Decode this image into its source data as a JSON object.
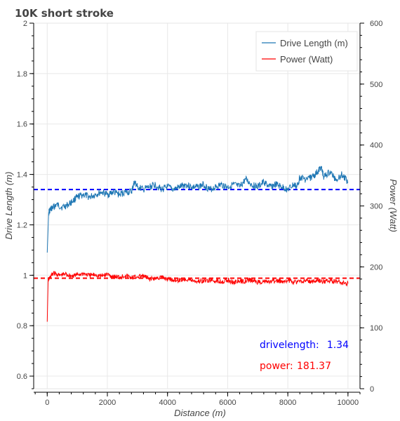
{
  "chart_data": {
    "type": "line",
    "title": "10K short stroke",
    "xlabel": "Distance (m)",
    "ylabel": "Drive Length (m)",
    "y2label": "Power (Watt)",
    "xlim": [
      -450,
      10400
    ],
    "ylim": [
      0.55,
      2.0
    ],
    "y2lim": [
      0,
      600
    ],
    "x_ticks": [
      0,
      2000,
      4000,
      6000,
      8000,
      10000
    ],
    "y_ticks": [
      0.6,
      0.8,
      1,
      1.2,
      1.4,
      1.6,
      1.8,
      2
    ],
    "y2_ticks": [
      0,
      100,
      200,
      300,
      400,
      500,
      600
    ],
    "grid": true,
    "legend_position": "top-right",
    "colors": {
      "drive": "#1f77b4",
      "power": "#ff0000",
      "drive_mean": "#0000ff",
      "power_mean": "#ff0000"
    },
    "series": [
      {
        "name": "Drive Length (m)",
        "axis": "left",
        "x": [
          0,
          50,
          100,
          200,
          300,
          500,
          700,
          900,
          1000,
          1200,
          1400,
          1600,
          1800,
          2000,
          2200,
          2400,
          2600,
          2800,
          2900,
          3000,
          3200,
          3400,
          3600,
          3800,
          4000,
          4200,
          4400,
          4600,
          4800,
          5000,
          5200,
          5400,
          5600,
          5800,
          6000,
          6200,
          6400,
          6600,
          6800,
          7000,
          7200,
          7400,
          7600,
          7800,
          8000,
          8200,
          8300,
          8400,
          8600,
          8800,
          9000,
          9100,
          9200,
          9400,
          9600,
          9800,
          10000
        ],
        "values": [
          1.09,
          1.25,
          1.26,
          1.27,
          1.28,
          1.27,
          1.28,
          1.3,
          1.31,
          1.32,
          1.31,
          1.32,
          1.33,
          1.32,
          1.33,
          1.32,
          1.33,
          1.33,
          1.37,
          1.35,
          1.34,
          1.35,
          1.36,
          1.34,
          1.35,
          1.34,
          1.35,
          1.36,
          1.35,
          1.35,
          1.36,
          1.34,
          1.35,
          1.36,
          1.35,
          1.36,
          1.35,
          1.38,
          1.36,
          1.35,
          1.37,
          1.35,
          1.36,
          1.35,
          1.34,
          1.36,
          1.35,
          1.39,
          1.38,
          1.39,
          1.41,
          1.43,
          1.39,
          1.41,
          1.38,
          1.4,
          1.37
        ]
      },
      {
        "name": "Power (Watt)",
        "axis": "right",
        "x": [
          0,
          30,
          100,
          200,
          400,
          600,
          800,
          1000,
          1200,
          1400,
          1600,
          1800,
          2000,
          2200,
          2400,
          2600,
          2800,
          3000,
          3200,
          3400,
          3600,
          3800,
          4000,
          4200,
          4400,
          4600,
          4800,
          5000,
          5200,
          5400,
          5600,
          5800,
          6000,
          6200,
          6400,
          6600,
          6800,
          7000,
          7200,
          7400,
          7600,
          7800,
          8000,
          8200,
          8400,
          8600,
          8800,
          9000,
          9200,
          9400,
          9600,
          9800,
          10000
        ],
        "values": [
          110,
          178,
          183,
          190,
          186,
          188,
          185,
          187,
          189,
          186,
          187,
          185,
          188,
          184,
          183,
          186,
          182,
          184,
          185,
          180,
          181,
          183,
          180,
          179,
          178,
          180,
          178,
          176,
          177,
          178,
          177,
          176,
          178,
          175,
          176,
          177,
          178,
          175,
          176,
          175,
          177,
          176,
          178,
          176,
          175,
          178,
          176,
          177,
          176,
          177,
          176,
          174,
          173
        ]
      }
    ],
    "reference_lines": [
      {
        "axis": "left",
        "value": 1.34,
        "color": "#0000ff"
      },
      {
        "axis": "right",
        "value": 181.37,
        "color": "#ff0000"
      }
    ],
    "annotations": [
      {
        "label": "drivelength:",
        "value": "1.34",
        "color": "#0000ff"
      },
      {
        "label": "power:",
        "value": "181.37",
        "color": "#ff0000"
      }
    ]
  }
}
